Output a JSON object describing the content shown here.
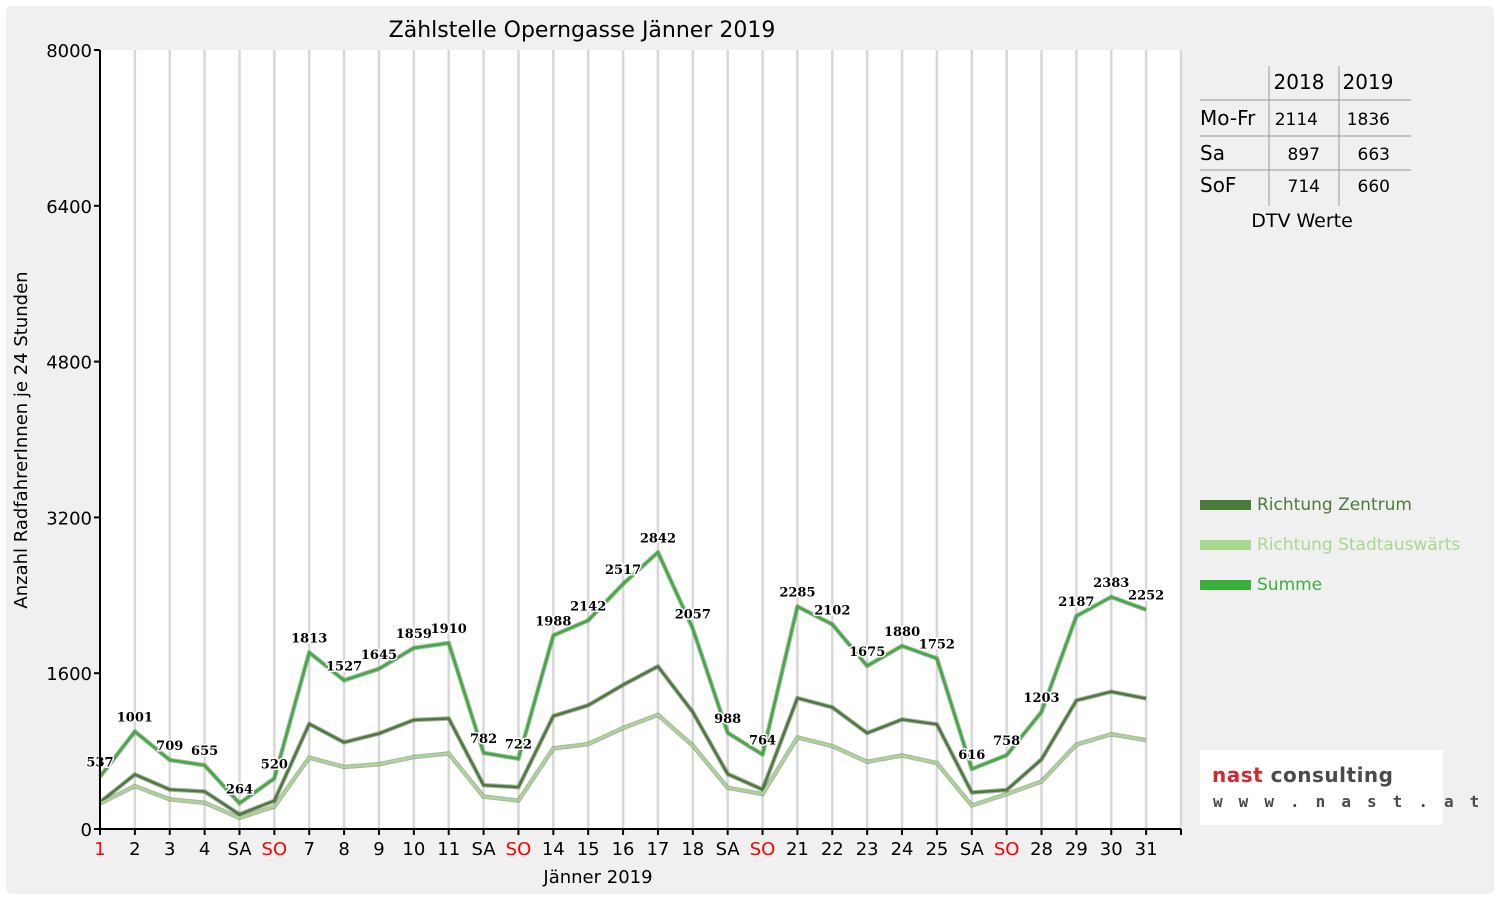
{
  "chart_data": {
    "type": "line",
    "title": "Zählstelle Operngasse Jänner 2019",
    "xlabel": "Jänner 2019",
    "ylabel": "Anzahl RadfahrerInnen je 24 Stunden",
    "ylim": [
      0,
      8000
    ],
    "yticks": [
      "0",
      "1600",
      "3200",
      "4800",
      "6400",
      "8000"
    ],
    "categories": [
      "1",
      "2",
      "3",
      "4",
      "SA",
      "SO",
      "7",
      "8",
      "9",
      "10",
      "11",
      "SA",
      "SO",
      "14",
      "15",
      "16",
      "17",
      "18",
      "SA",
      "SO",
      "21",
      "22",
      "23",
      "24",
      "25",
      "SA",
      "SO",
      "28",
      "29",
      "30",
      "31"
    ],
    "category_colors": [
      "#ff0000",
      "#000000",
      "#000000",
      "#000000",
      "#000000",
      "#ff0000",
      "#000000",
      "#000000",
      "#000000",
      "#000000",
      "#000000",
      "#000000",
      "#ff0000",
      "#000000",
      "#000000",
      "#000000",
      "#000000",
      "#000000",
      "#000000",
      "#ff0000",
      "#000000",
      "#000000",
      "#000000",
      "#000000",
      "#000000",
      "#000000",
      "#ff0000",
      "#000000",
      "#000000",
      "#000000",
      "#000000"
    ],
    "grid": "vertical",
    "legend_position": "right",
    "series": [
      {
        "name": "Richtung Zentrum",
        "color": "#4a7c38",
        "values": [
          275,
          560,
          405,
          385,
          150,
          290,
          1080,
          890,
          980,
          1120,
          1135,
          450,
          430,
          1160,
          1270,
          1480,
          1670,
          1200,
          565,
          405,
          1345,
          1250,
          985,
          1125,
          1075,
          375,
          400,
          715,
          1320,
          1410,
          1340
        ]
      },
      {
        "name": "Richtung Stadtauswärts",
        "color": "#a8d890",
        "values": [
          262,
          441,
          304,
          270,
          114,
          230,
          733,
          637,
          665,
          739,
          775,
          332,
          292,
          828,
          872,
          1037,
          1172,
          857,
          423,
          359,
          940,
          852,
          690,
          755,
          677,
          241,
          358,
          488,
          867,
          973,
          912
        ]
      },
      {
        "name": "Summe",
        "color": "#3ab03a",
        "values": [
          537,
          1001,
          709,
          655,
          264,
          520,
          1813,
          1527,
          1645,
          1859,
          1910,
          782,
          722,
          1988,
          2142,
          2517,
          2842,
          2057,
          988,
          764,
          2285,
          2102,
          1675,
          1880,
          1752,
          616,
          758,
          1203,
          2187,
          2383,
          2252
        ],
        "labels": [
          "537",
          "1001",
          "709",
          "655",
          "264",
          "520",
          "1813",
          "1527",
          "1645",
          "1859",
          "1910",
          "782",
          "722",
          "1988",
          "2142",
          "2517",
          "2842",
          "2057",
          "988",
          "764",
          "2285",
          "2102",
          "1675",
          "1880",
          "1752",
          "616",
          "758",
          "1203",
          "2187",
          "2383",
          "2252"
        ]
      }
    ]
  },
  "dtv_table": {
    "columns": [
      "2018",
      "2019"
    ],
    "rows": [
      {
        "label": "Mo-Fr",
        "v2018": "2114",
        "v2019": "1836"
      },
      {
        "label": "Sa",
        "v2018": "897",
        "v2019": "663"
      },
      {
        "label": "SoF",
        "v2018": "714",
        "v2019": "660"
      }
    ],
    "caption": "DTV Werte"
  },
  "logo": {
    "brand_part1": "nast",
    "brand_part2": "consulting",
    "url": "w w w . n a s t . a t"
  }
}
